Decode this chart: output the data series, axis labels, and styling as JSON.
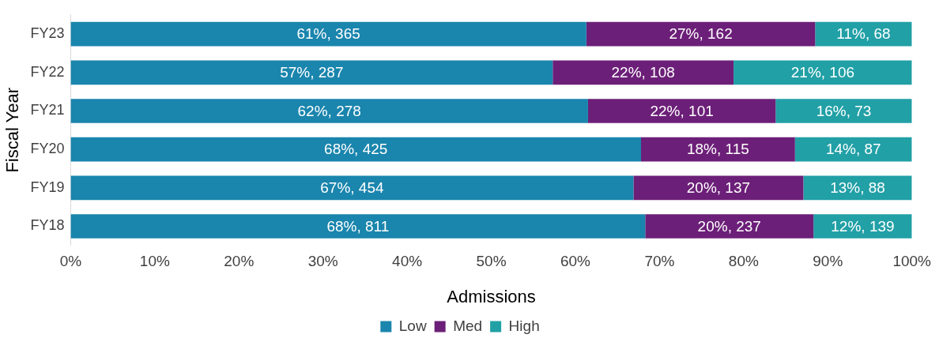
{
  "chart_data": {
    "type": "bar",
    "orientation": "horizontal",
    "stacked": true,
    "xlabel": "Admissions",
    "ylabel": "Fiscal Year",
    "categories": [
      "FY23",
      "FY22",
      "FY21",
      "FY20",
      "FY19",
      "FY18"
    ],
    "series": [
      {
        "name": "Low",
        "color": "#1a85ad",
        "values": [
          61.3,
          57.3,
          61.5,
          67.8,
          66.9,
          68.3
        ],
        "value_labels": [
          "61%, 365",
          "57%, 287",
          "62%, 278",
          "68%, 425",
          "67%, 454",
          "68%, 811"
        ]
      },
      {
        "name": "Med",
        "color": "#6c1f78",
        "values": [
          27.2,
          21.5,
          22.3,
          18.3,
          20.2,
          20.0
        ],
        "value_labels": [
          "27%, 162",
          "22%, 108",
          "22%, 101",
          "18%, 115",
          "20%, 137",
          "20%, 237"
        ]
      },
      {
        "name": "High",
        "color": "#21a0a6",
        "values": [
          11.5,
          21.2,
          16.2,
          13.9,
          12.9,
          11.7
        ],
        "value_labels": [
          "11%, 68",
          "21%, 106",
          "16%, 73",
          "14%, 87",
          "13%, 88",
          "12%, 139"
        ]
      }
    ],
    "xlim": [
      0,
      100
    ],
    "xticks": [
      {
        "value": 0,
        "label": "0%"
      },
      {
        "value": 10,
        "label": "10%"
      },
      {
        "value": 20,
        "label": "20%"
      },
      {
        "value": 30,
        "label": "30%"
      },
      {
        "value": 40,
        "label": "40%"
      },
      {
        "value": 50,
        "label": "50%"
      },
      {
        "value": 60,
        "label": "60%"
      },
      {
        "value": 70,
        "label": "70%"
      },
      {
        "value": 80,
        "label": "80%"
      },
      {
        "value": 90,
        "label": "90%"
      },
      {
        "value": 100,
        "label": "100%"
      }
    ],
    "grid": false,
    "legend": "bottom"
  }
}
